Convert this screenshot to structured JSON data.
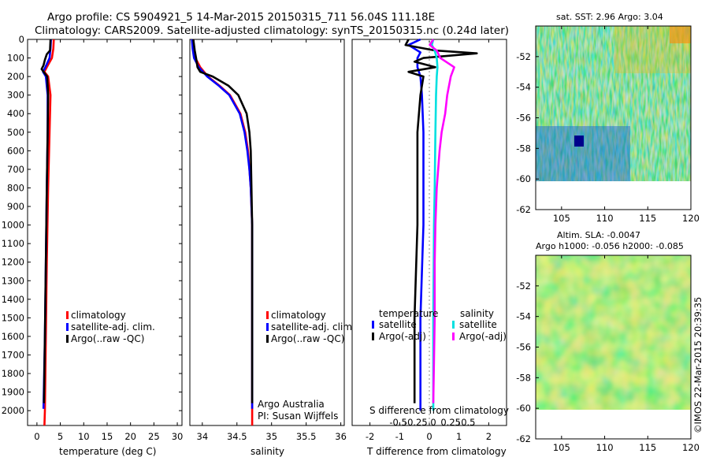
{
  "header": {
    "title": "Argo profile: CS 5904921_5 14-Mar-2015 20150315_711 56.04S 111.18E",
    "subtitle": "Climatology: CARS2009. Satellite-adjusted climatology: synTS_20150315.nc (0.24d later)"
  },
  "credit": "©IMOS 22-Mar-2015 20:39:35",
  "colors": {
    "climatology": "#ff0000",
    "satellite": "#0000ff",
    "argo": "#000000",
    "sal_satellite": "#00e0e0",
    "sal_argo": "#ff00ff"
  },
  "chart_data": [
    {
      "type": "line",
      "name": "temperature-profile",
      "xlabel": "temperature (deg C)",
      "ylabel": "",
      "xlim": [
        -2,
        31
      ],
      "ylim": [
        2080,
        0
      ],
      "xticks": [
        0,
        5,
        10,
        15,
        20,
        25,
        30
      ],
      "xtick_labels": [
        "0",
        "5",
        "10",
        "15",
        "20",
        "25",
        "30"
      ],
      "yticks": [
        0,
        100,
        200,
        300,
        400,
        500,
        600,
        700,
        800,
        900,
        1000,
        1100,
        1200,
        1300,
        1400,
        1500,
        1600,
        1700,
        1800,
        1900,
        2000
      ],
      "ytick_labels": [
        "0",
        "100",
        "200",
        "300",
        "400",
        "500",
        "600",
        "700",
        "800",
        "900",
        "1000",
        "1100",
        "1200",
        "1300",
        "1400",
        "1500",
        "1600",
        "1700",
        "1800",
        "1900",
        "2000"
      ],
      "legend": [
        "climatology",
        "satellite-adj. clim.",
        "Argo(..raw -QC)"
      ],
      "series": [
        {
          "name": "climatology",
          "color_key": "climatology",
          "depth": [
            0,
            50,
            100,
            150,
            175,
            200,
            300,
            500,
            800,
            1200,
            1600,
            2000,
            2080
          ],
          "values": [
            3.6,
            3.5,
            3.2,
            2.1,
            1.6,
            2.4,
            2.9,
            2.7,
            2.4,
            2.1,
            1.9,
            1.7,
            1.6
          ]
        },
        {
          "name": "satellite-adj. clim.",
          "color_key": "satellite",
          "depth": [
            0,
            50,
            100,
            150,
            175,
            200,
            300,
            500,
            800,
            1200,
            1600,
            1990
          ],
          "values": [
            3.0,
            2.9,
            2.7,
            1.8,
            1.3,
            1.9,
            2.3,
            2.3,
            2.1,
            1.9,
            1.7,
            1.4
          ]
        },
        {
          "name": "Argo(..raw -QC)",
          "color_key": "argo",
          "depth": [
            0,
            60,
            80,
            110,
            140,
            160,
            180,
            200,
            300,
            500,
            800,
            1200,
            1600,
            1960
          ],
          "values": [
            2.9,
            2.8,
            2.1,
            1.7,
            1.4,
            1.0,
            1.6,
            2.2,
            2.4,
            2.3,
            2.1,
            1.9,
            1.7,
            1.5
          ]
        }
      ]
    },
    {
      "type": "line",
      "name": "salinity-profile",
      "xlabel": "salinity",
      "xlim": [
        33.82,
        36.05
      ],
      "ylim": [
        2080,
        0
      ],
      "xticks": [
        34,
        34.5,
        35,
        35.5,
        36
      ],
      "xtick_labels": [
        "34",
        "34.5",
        "35",
        "35.5",
        "36"
      ],
      "legend": [
        "climatology",
        "satellite-adj. clim.",
        "Argo(..raw -QC)"
      ],
      "annotation": [
        "Argo Australia",
        "PI: Susan Wijffels"
      ],
      "series": [
        {
          "name": "climatology",
          "color_key": "climatology",
          "depth": [
            0,
            50,
            100,
            150,
            200,
            250,
            300,
            400,
            500,
            600,
            700,
            800,
            900,
            1000,
            1200,
            1500,
            2000,
            2080
          ],
          "values": [
            33.87,
            33.88,
            33.9,
            33.97,
            34.08,
            34.25,
            34.4,
            34.55,
            34.62,
            34.66,
            34.68,
            34.7,
            34.71,
            34.72,
            34.72,
            34.72,
            34.72,
            34.72
          ]
        },
        {
          "name": "satellite-adj. clim.",
          "color_key": "satellite",
          "depth": [
            0,
            50,
            100,
            150,
            200,
            250,
            300,
            400,
            500,
            600,
            700,
            800,
            900,
            1000,
            1200,
            1500,
            1990
          ],
          "values": [
            33.85,
            33.86,
            33.88,
            33.95,
            34.07,
            34.24,
            34.39,
            34.54,
            34.61,
            34.65,
            34.68,
            34.7,
            34.71,
            34.72,
            34.72,
            34.72,
            34.72
          ]
        },
        {
          "name": "Argo(..raw -QC)",
          "color_key": "argo",
          "depth": [
            0,
            60,
            100,
            150,
            175,
            200,
            250,
            300,
            400,
            500,
            600,
            800,
            1000,
            1500,
            1960
          ],
          "values": [
            33.87,
            33.89,
            33.91,
            33.93,
            33.97,
            34.15,
            34.38,
            34.52,
            34.64,
            34.68,
            34.7,
            34.71,
            34.72,
            34.72,
            34.72
          ]
        }
      ]
    },
    {
      "type": "line",
      "name": "difference-profile",
      "xlabel": "T difference from climatology",
      "xlabel_top": "S difference from climatology",
      "xlim": [
        -2.6,
        2.6
      ],
      "ylim": [
        2080,
        0
      ],
      "xticks": [
        -2,
        -1,
        0,
        1,
        2
      ],
      "xtick_labels": [
        "-2",
        "-1",
        "0",
        "1",
        "2"
      ],
      "xticks_s": [
        -0.5,
        -0.25,
        0,
        0.25,
        0.5
      ],
      "xtick_labels_s": [
        "-0.5",
        "-0.25",
        "0",
        "0.25",
        "0.5"
      ],
      "legend_t_title": "temperature",
      "legend_t": [
        "satellite",
        "Argo(-adj)"
      ],
      "legend_s_title": "salinity",
      "legend_s": [
        "satellite",
        "Argo(-adj)"
      ],
      "series": [
        {
          "name": "temperature satellite",
          "color_key": "satellite",
          "depth": [
            0,
            30,
            50,
            70,
            100,
            150,
            200,
            300,
            500,
            1000,
            1500,
            2000
          ],
          "values": [
            -0.3,
            -0.7,
            -0.5,
            -0.3,
            -0.4,
            -0.4,
            -0.3,
            -0.25,
            -0.2,
            -0.2,
            -0.3,
            -0.3
          ]
        },
        {
          "name": "temperature Argo(-adj)",
          "color_key": "argo",
          "depth": [
            0,
            30,
            60,
            75,
            100,
            120,
            150,
            175,
            200,
            300,
            500,
            1000,
            1500,
            1960
          ],
          "values": [
            -0.7,
            -0.8,
            0.2,
            1.6,
            -0.2,
            -0.5,
            0.2,
            -0.7,
            -0.2,
            -0.3,
            -0.4,
            -0.4,
            -0.5,
            -0.5
          ]
        },
        {
          "name": "salinity satellite",
          "color_key": "sal_satellite",
          "depth": [
            0,
            30,
            60,
            100,
            150,
            200,
            300,
            500,
            800,
            1000,
            1500,
            2000
          ],
          "values": [
            0.0,
            -0.02,
            0.02,
            0.05,
            0.06,
            0.05,
            0.04,
            0.03,
            0.02,
            0.01,
            0.0,
            0.0
          ]
        },
        {
          "name": "salinity Argo(-adj)",
          "color_key": "sal_argo",
          "depth": [
            0,
            30,
            60,
            100,
            150,
            200,
            300,
            400,
            500,
            600,
            800,
            1000,
            1200,
            1500,
            1960
          ],
          "values": [
            0.0,
            -0.05,
            0.05,
            0.1,
            0.3,
            0.25,
            0.2,
            0.17,
            0.12,
            0.09,
            0.05,
            0.03,
            0.02,
            0.02,
            0.0
          ]
        }
      ]
    },
    {
      "type": "heatmap",
      "name": "sst-map",
      "title": "sat. SST: 2.96 Argo: 3.04",
      "xlim": [
        102,
        120
      ],
      "ylim": [
        -62,
        -50
      ],
      "xticks": [
        105,
        110,
        115,
        120
      ],
      "yticks": [
        -52,
        -54,
        -56,
        -58,
        -60,
        -62
      ]
    },
    {
      "type": "heatmap",
      "name": "sla-map",
      "title": "Altim. SLA: -0.0047",
      "title2": "Argo h1000: -0.056 h2000: -0.085",
      "xlim": [
        102,
        120
      ],
      "ylim": [
        -62,
        -50
      ],
      "xticks": [
        105,
        110,
        115,
        120
      ],
      "yticks": [
        -52,
        -54,
        -56,
        -58,
        -60,
        -62
      ]
    }
  ]
}
